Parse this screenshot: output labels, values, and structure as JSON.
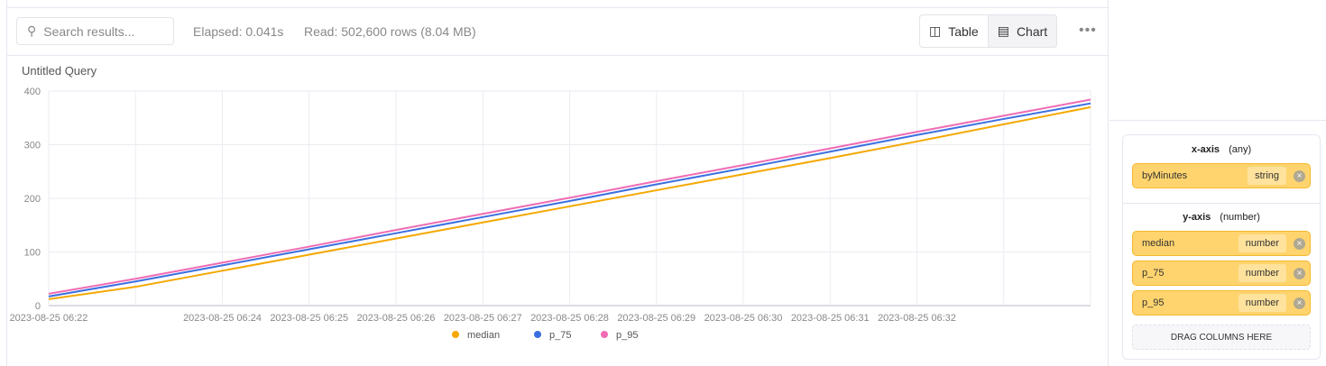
{
  "toolbar": {
    "search_placeholder": "Search results...",
    "elapsed": "Elapsed: 0.041s",
    "read": "Read: 502,600 rows (8.04 MB)",
    "table_label": "Table",
    "chart_label": "Chart",
    "more": "•••"
  },
  "query_title": "Untitled Query",
  "chart_data": {
    "type": "line",
    "title": "Untitled Query",
    "ylim": [
      0,
      400
    ],
    "yticks": [
      0,
      100,
      200,
      300,
      400
    ],
    "x_count": 13,
    "xticks": [
      {
        "i": 0,
        "label": "2023-08-25 06:22"
      },
      {
        "i": 2,
        "label": "2023-08-25 06:24"
      },
      {
        "i": 3,
        "label": "2023-08-25 06:25"
      },
      {
        "i": 4,
        "label": "2023-08-25 06:26"
      },
      {
        "i": 5,
        "label": "2023-08-25 06:27"
      },
      {
        "i": 6,
        "label": "2023-08-25 06:28"
      },
      {
        "i": 7,
        "label": "2023-08-25 06:29"
      },
      {
        "i": 8,
        "label": "2023-08-25 06:30"
      },
      {
        "i": 9,
        "label": "2023-08-25 06:31"
      },
      {
        "i": 10,
        "label": "2023-08-25 06:32"
      }
    ],
    "series": [
      {
        "name": "median",
        "color": "#f5a800",
        "values": [
          12,
          35,
          65,
          95,
          125,
          155,
          185,
          215,
          245,
          275,
          306,
          338,
          370
        ]
      },
      {
        "name": "p_75",
        "color": "#3b6fe0",
        "values": [
          17,
          45,
          75,
          105,
          135,
          165,
          195,
          226,
          256,
          287,
          318,
          348,
          377
        ]
      },
      {
        "name": "p_95",
        "color": "#f06cb4",
        "values": [
          22,
          50,
          80,
          110,
          141,
          171,
          201,
          232,
          262,
          293,
          324,
          354,
          384
        ]
      }
    ],
    "legend": "bottom-center",
    "grid": true
  },
  "config": {
    "x_axis": {
      "label": "x-axis",
      "type_hint": "(any)",
      "columns": [
        {
          "name": "byMinutes",
          "type": "string"
        }
      ]
    },
    "y_axis": {
      "label": "y-axis",
      "type_hint": "(number)",
      "columns": [
        {
          "name": "median",
          "type": "number"
        },
        {
          "name": "p_75",
          "type": "number"
        },
        {
          "name": "p_95",
          "type": "number"
        }
      ]
    },
    "drop_label": "DRAG COLUMNS HERE",
    "remove_icon": "×"
  }
}
